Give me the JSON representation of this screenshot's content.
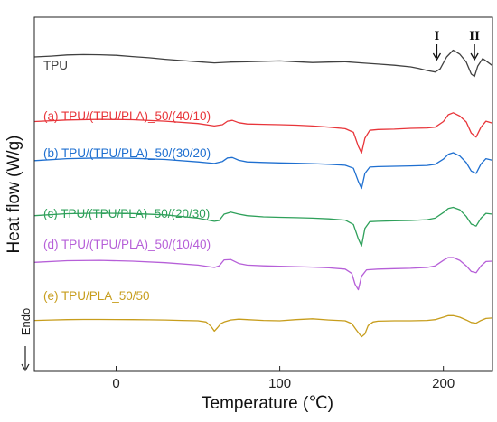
{
  "chart_data": {
    "type": "line",
    "title": "",
    "xlabel": "Temperature (℃)",
    "ylabel": "Heat flow (W/g)",
    "endo_label": "Endo",
    "xlim": [
      -50,
      230
    ],
    "x_ticks": [
      0,
      100,
      200
    ],
    "grid": false,
    "legend": "inline labels above each curve",
    "annotations": [
      {
        "label": "I",
        "x": 196
      },
      {
        "label": "II",
        "x": 219
      }
    ],
    "series": [
      {
        "name": "TPU",
        "color": "#404040",
        "x": [
          -50,
          -40,
          -30,
          -20,
          -10,
          0,
          10,
          20,
          30,
          40,
          50,
          60,
          70,
          80,
          90,
          100,
          110,
          120,
          130,
          140,
          150,
          160,
          170,
          180,
          185,
          190,
          195,
          198,
          202,
          206,
          210,
          214,
          217,
          219,
          221,
          224,
          227,
          230
        ],
        "y": [
          2.5,
          2.7,
          3.0,
          3.1,
          3.05,
          2.9,
          2.6,
          2.3,
          1.9,
          1.6,
          1.3,
          1.0,
          1.2,
          1.3,
          1.4,
          1.5,
          1.3,
          1.1,
          1.2,
          1.3,
          1.0,
          0.7,
          0.4,
          0.0,
          -0.4,
          -0.9,
          -1.3,
          -0.5,
          2.5,
          4.2,
          3.2,
          1.2,
          -1.8,
          -2.4,
          0.2,
          2.1,
          1.2,
          0.3
        ]
      },
      {
        "name": "(a) TPU/(TPU/PLA)_50/(40/10)",
        "color": "#e8353a",
        "x": [
          -50,
          -30,
          -10,
          10,
          30,
          50,
          60,
          65,
          68,
          71,
          75,
          80,
          90,
          100,
          110,
          120,
          130,
          140,
          145,
          148,
          150,
          152,
          155,
          160,
          170,
          180,
          190,
          195,
          200,
          203,
          206,
          210,
          214,
          217,
          220,
          223,
          226,
          230
        ],
        "y": [
          1.7,
          2.1,
          2.25,
          2.15,
          1.8,
          1.2,
          0.6,
          0.9,
          1.8,
          2.0,
          1.4,
          1.1,
          1.0,
          0.9,
          0.8,
          0.6,
          0.3,
          -0.1,
          -1.0,
          -4.5,
          -6.2,
          -2.5,
          -0.5,
          -0.3,
          -0.2,
          0.0,
          0.1,
          0.3,
          1.7,
          3.4,
          3.9,
          3.1,
          1.6,
          -1.2,
          -2.2,
          0.3,
          1.8,
          1.3
        ]
      },
      {
        "name": "(b) TPU/(TPU/PLA)_50/(30/20)",
        "color": "#1e6fd0",
        "x": [
          -50,
          -30,
          -10,
          10,
          30,
          50,
          60,
          65,
          68,
          71,
          75,
          80,
          90,
          100,
          110,
          120,
          130,
          140,
          145,
          148,
          150,
          152,
          155,
          160,
          170,
          180,
          190,
          195,
          200,
          203,
          206,
          210,
          214,
          217,
          220,
          223,
          226,
          230
        ],
        "y": [
          1.4,
          1.9,
          2.1,
          2.0,
          1.7,
          1.1,
          0.7,
          1.2,
          2.1,
          2.2,
          1.5,
          1.1,
          0.95,
          0.85,
          0.75,
          0.65,
          0.5,
          0.25,
          -0.5,
          -3.8,
          -5.6,
          -1.8,
          -0.2,
          -0.1,
          0.0,
          0.1,
          0.2,
          0.5,
          1.8,
          3.0,
          3.4,
          2.6,
          0.9,
          -1.2,
          -1.8,
          0.6,
          1.9,
          1.5
        ]
      },
      {
        "name": "(c) TPU/(TPU/PLA)_50/(20/30)",
        "color": "#2ea05a",
        "x": [
          -50,
          -30,
          -10,
          10,
          30,
          50,
          60,
          63,
          66,
          70,
          75,
          80,
          90,
          100,
          110,
          120,
          130,
          140,
          145,
          148,
          150,
          152,
          155,
          160,
          170,
          180,
          190,
          195,
          200,
          203,
          206,
          210,
          214,
          217,
          220,
          223,
          226,
          230
        ],
        "y": [
          1.2,
          1.7,
          1.85,
          1.75,
          1.4,
          0.6,
          -0.2,
          0.0,
          1.6,
          2.1,
          1.6,
          1.2,
          0.9,
          0.8,
          0.7,
          0.6,
          0.4,
          0.1,
          -1.0,
          -4.6,
          -6.4,
          -2.0,
          -0.3,
          -0.2,
          -0.1,
          0.0,
          0.2,
          0.6,
          2.0,
          3.0,
          3.3,
          2.7,
          1.0,
          -0.9,
          -1.4,
          0.6,
          1.8,
          1.6
        ]
      },
      {
        "name": "(d) TPU/(TPU/PLA)_50/(10/40)",
        "color": "#b65fd8",
        "x": [
          -50,
          -30,
          -10,
          10,
          30,
          50,
          60,
          63,
          66,
          70,
          75,
          80,
          90,
          100,
          110,
          120,
          130,
          140,
          144,
          146,
          148,
          150,
          153,
          160,
          170,
          180,
          190,
          195,
          200,
          203,
          206,
          210,
          214,
          217,
          220,
          223,
          226,
          230
        ],
        "y": [
          1.3,
          1.7,
          1.8,
          1.6,
          1.2,
          0.6,
          0.0,
          0.4,
          1.9,
          2.0,
          1.0,
          0.6,
          0.4,
          0.3,
          0.2,
          0.1,
          -0.1,
          -0.4,
          -1.5,
          -4.2,
          -5.6,
          -2.2,
          -0.6,
          -0.4,
          -0.3,
          -0.2,
          0.0,
          0.4,
          1.8,
          2.5,
          2.5,
          1.8,
          0.4,
          -1.0,
          -1.3,
          0.4,
          1.5,
          1.6
        ]
      },
      {
        "name": "(e) TPU/PLA_50/50",
        "color": "#c79d1c",
        "x": [
          -50,
          -40,
          -30,
          -20,
          -10,
          0,
          10,
          20,
          30,
          40,
          50,
          55,
          58,
          60,
          62,
          64,
          66,
          70,
          75,
          80,
          90,
          100,
          110,
          120,
          130,
          140,
          144,
          147,
          150,
          152,
          154,
          157,
          160,
          170,
          180,
          190,
          195,
          200,
          203,
          206,
          210,
          214,
          217,
          220,
          223,
          226,
          230
        ],
        "y": [
          0.1,
          0.2,
          0.3,
          0.35,
          0.35,
          0.32,
          0.3,
          0.25,
          0.2,
          0.1,
          0.0,
          -0.3,
          -1.4,
          -2.6,
          -1.7,
          -0.7,
          -0.3,
          0.2,
          0.4,
          0.3,
          0.1,
          0.0,
          0.3,
          0.5,
          0.2,
          0.0,
          -0.7,
          -2.4,
          -4.0,
          -3.3,
          -1.2,
          -0.3,
          -0.1,
          0.0,
          0.0,
          0.1,
          0.3,
          0.9,
          1.3,
          1.3,
          0.9,
          0.2,
          -0.4,
          -0.6,
          0.1,
          0.6,
          0.7
        ]
      }
    ]
  }
}
